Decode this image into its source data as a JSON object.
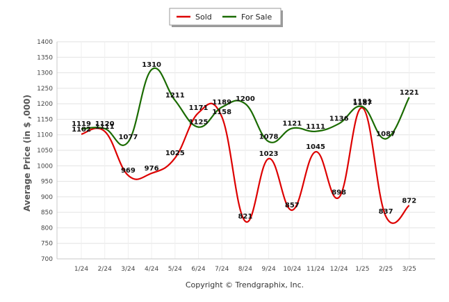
{
  "chart_data": {
    "type": "line",
    "title": "",
    "xlabel": "",
    "ylabel": "Average Price (in $ ,000)",
    "categories": [
      "1/24",
      "2/24",
      "3/24",
      "4/24",
      "5/24",
      "6/24",
      "7/24",
      "8/24",
      "9/24",
      "10/24",
      "11/24",
      "12/24",
      "1/25",
      "2/25",
      "3/25"
    ],
    "ylim": [
      700,
      1400
    ],
    "yticks": [
      700,
      750,
      800,
      850,
      900,
      950,
      1000,
      1050,
      1100,
      1150,
      1200,
      1250,
      1300,
      1350,
      1400
    ],
    "grid": true,
    "legend_position": "top-center",
    "series": [
      {
        "name": "Sold",
        "color": "#dd0000",
        "values": [
          1102,
          1111,
          969,
          976,
          1025,
          1171,
          1158,
          821,
          1023,
          857,
          1045,
          898,
          1187,
          837,
          872
        ]
      },
      {
        "name": "For Sale",
        "color": "#1a6b00",
        "values": [
          1119,
          1120,
          1077,
          1310,
          1211,
          1125,
          1189,
          1200,
          1078,
          1121,
          1111,
          1136,
          1191,
          1087,
          1221
        ]
      }
    ]
  },
  "footer": {
    "copyright": "Copyright © Trendgraphix, Inc."
  }
}
